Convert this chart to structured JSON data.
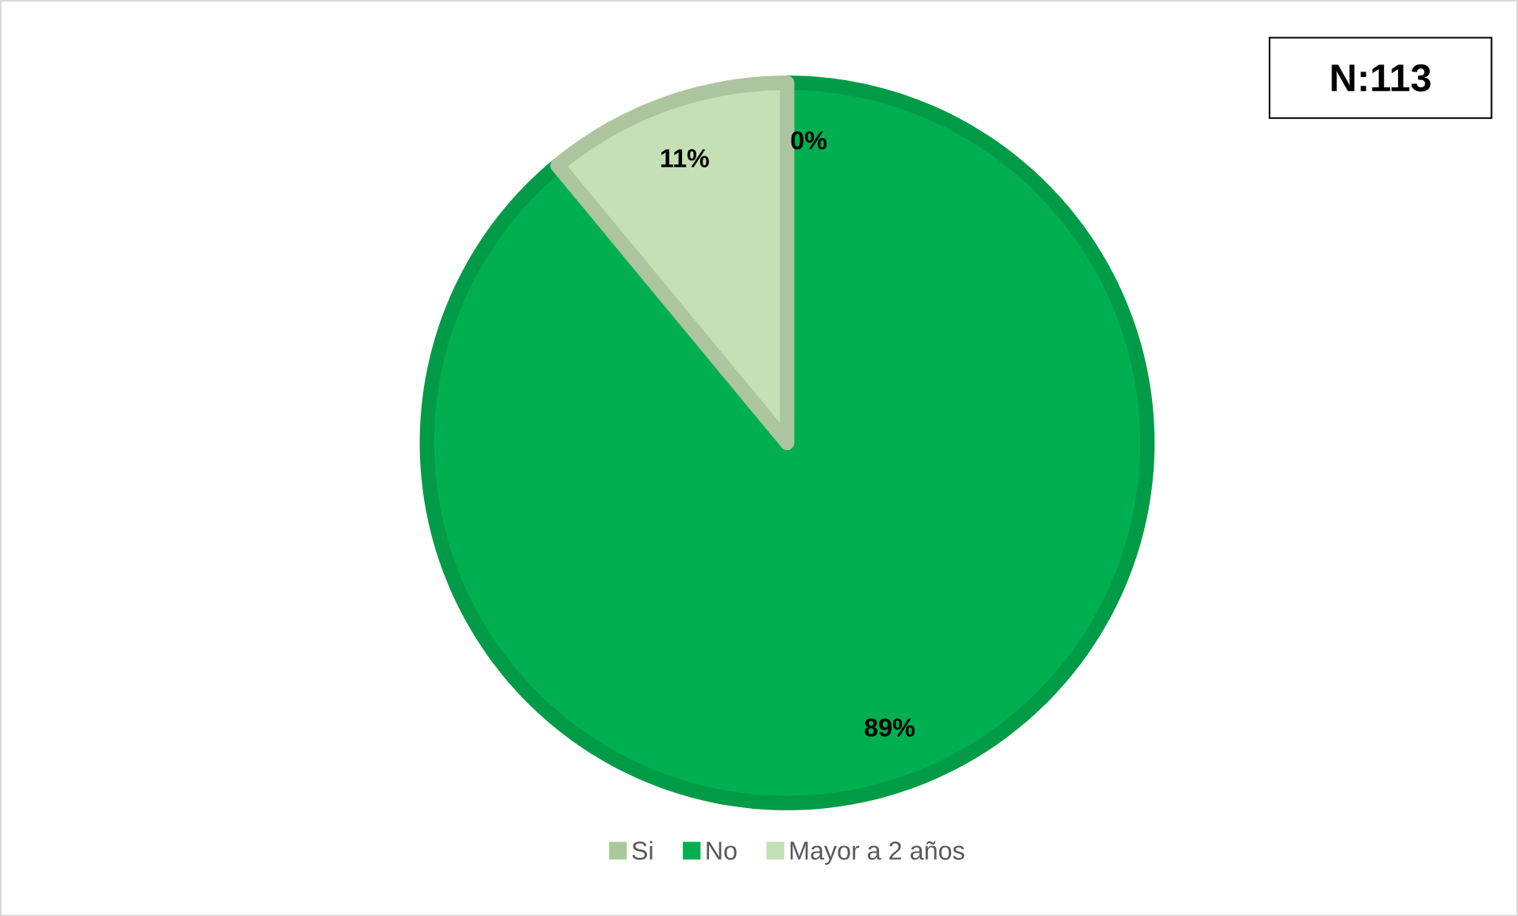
{
  "chart_data": {
    "type": "pie",
    "categories": [
      "Si",
      "No",
      "Mayor a 2 años"
    ],
    "values": [
      0,
      89,
      11
    ],
    "colors": [
      "#a9c99a",
      "#00b050",
      "#c5e0b4"
    ],
    "value_labels": [
      "0%",
      "89%",
      "11%"
    ],
    "legend": "bottom",
    "annotations": [
      "N:113"
    ]
  }
}
